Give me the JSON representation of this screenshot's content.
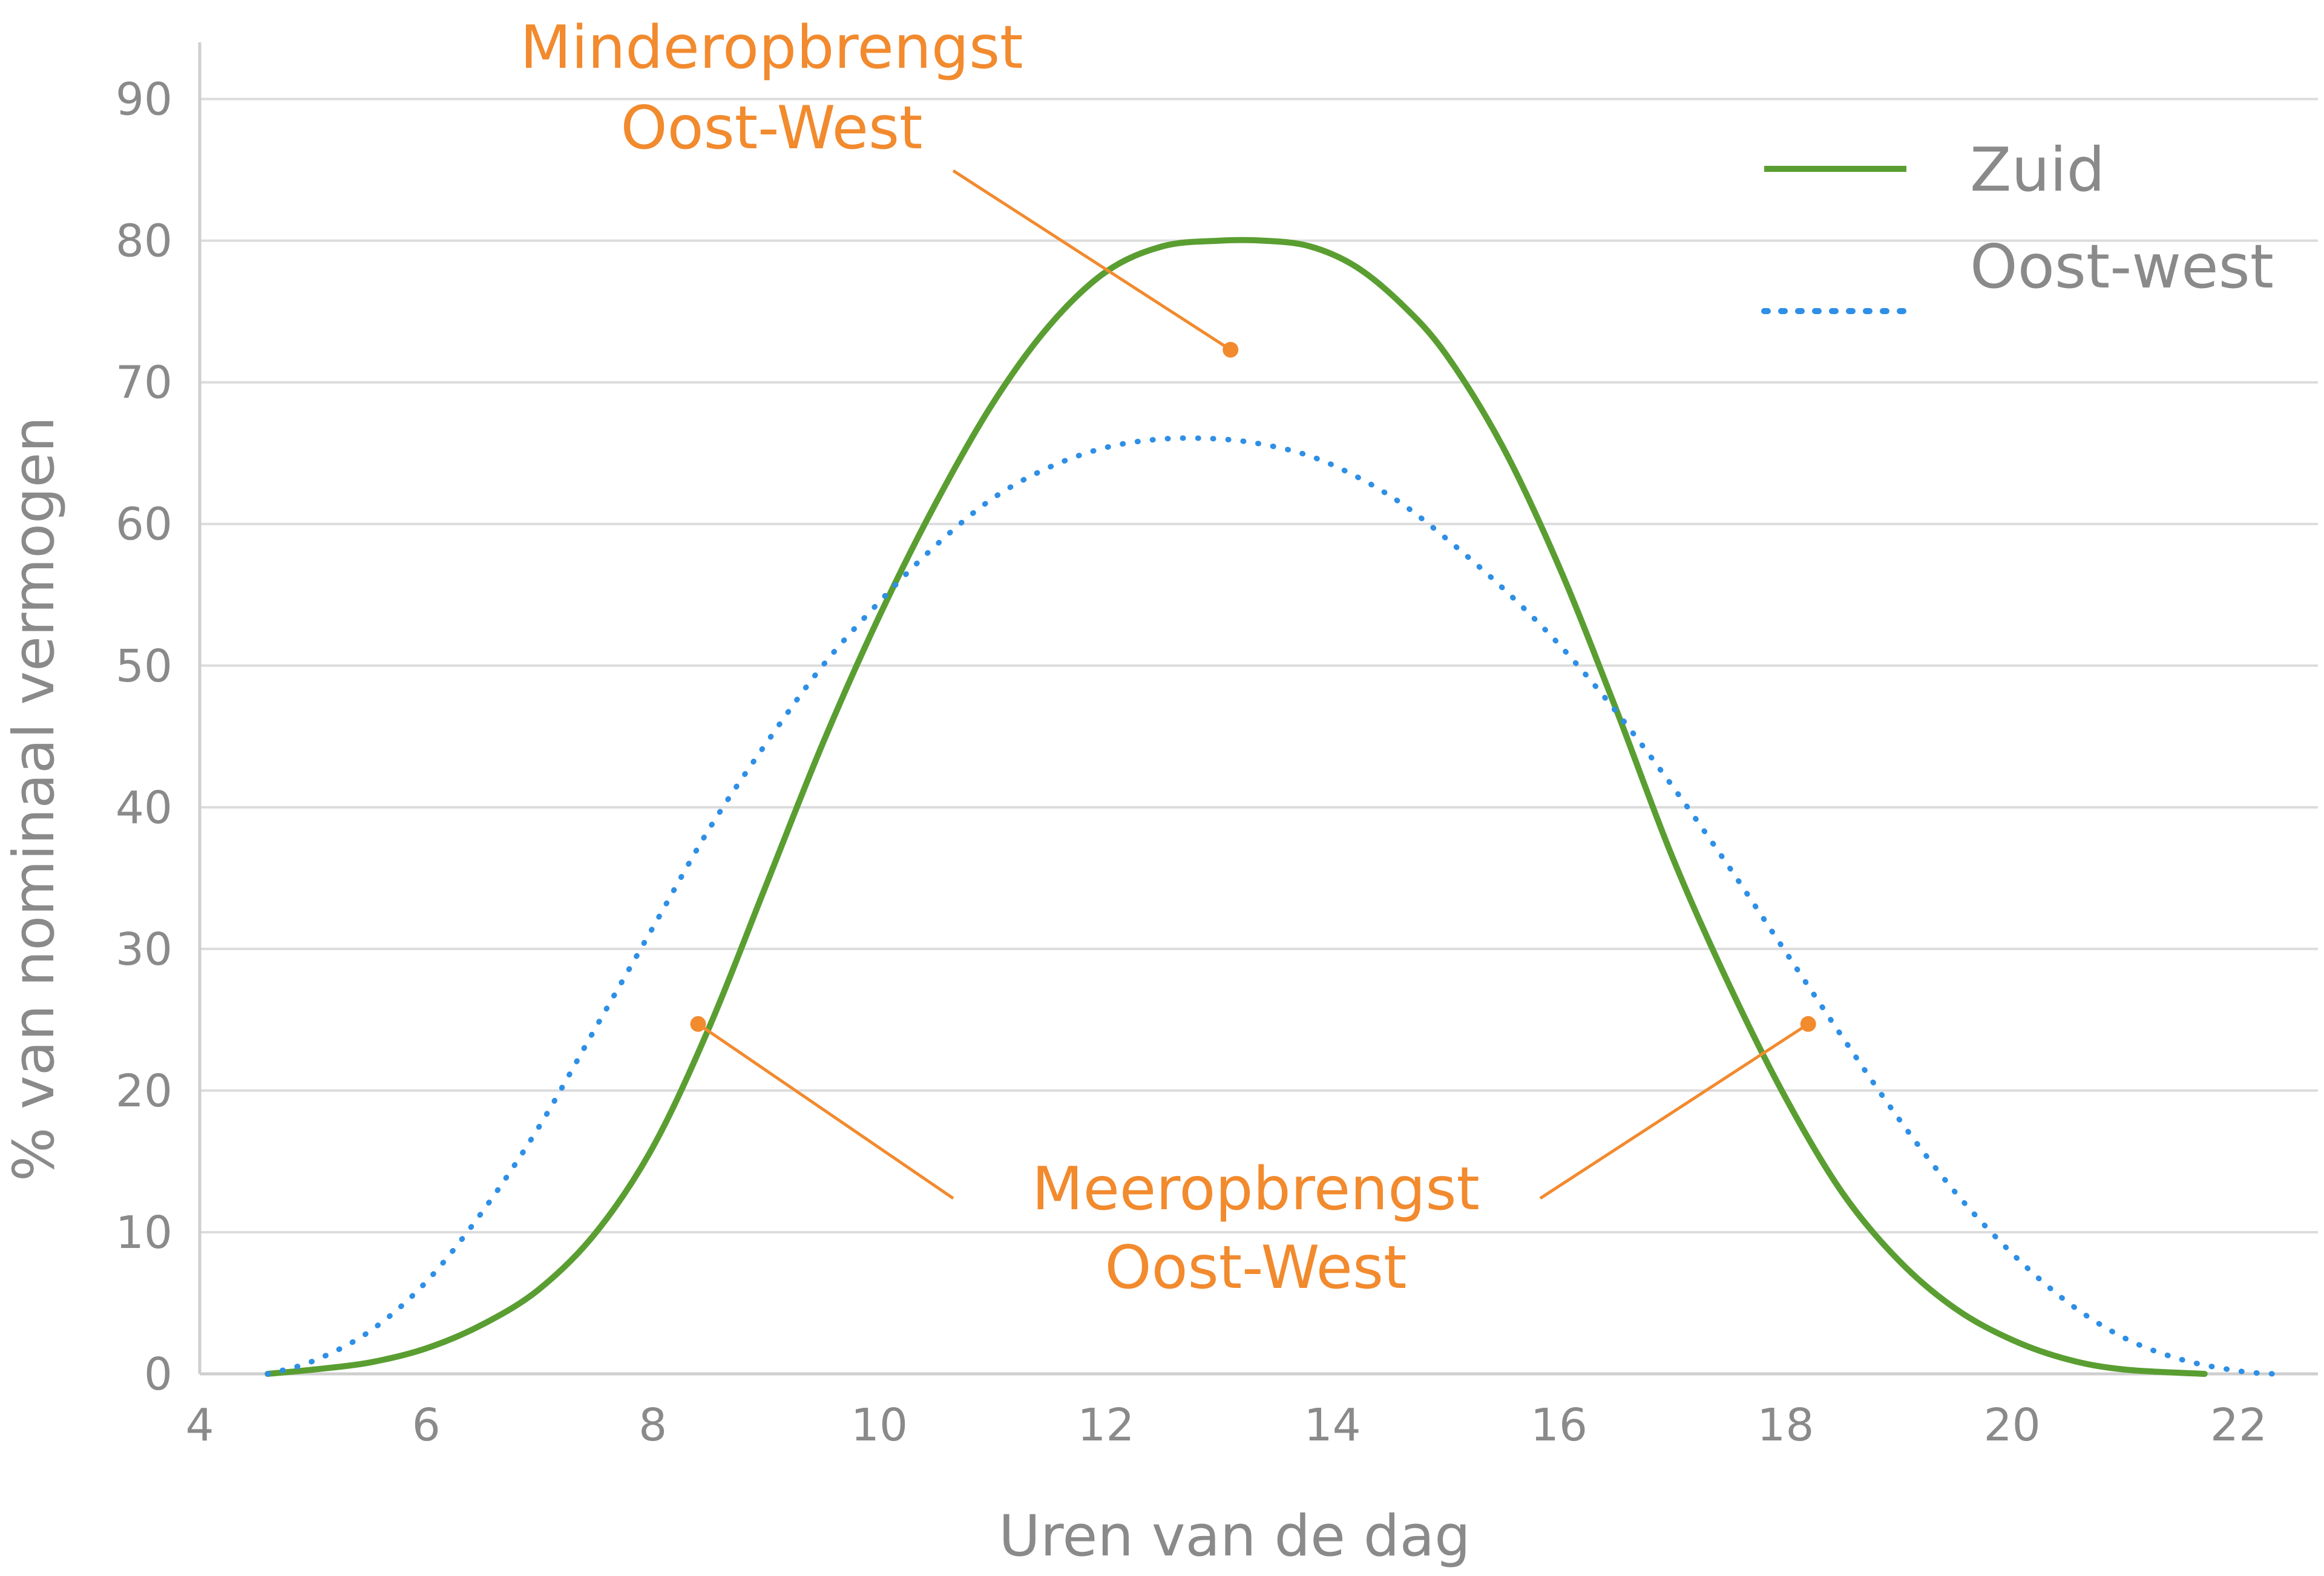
{
  "chart_data": {
    "type": "line",
    "xlabel": "Uren van de dag",
    "ylabel": "% van nominaal vermogen",
    "xlim": [
      4,
      22.7
    ],
    "ylim": [
      0,
      94
    ],
    "xticks": [
      "4",
      "6",
      "8",
      "10",
      "12",
      "14",
      "16",
      "18",
      "20",
      "22"
    ],
    "yticks": [
      "0",
      "10",
      "20",
      "30",
      "40",
      "50",
      "60",
      "70",
      "80",
      "90"
    ],
    "grid": "horizontal",
    "legend_position": "top-right",
    "series": [
      {
        "name": "Zuid",
        "style": "solid",
        "color": "#5a9e32",
        "x": [
          4.6,
          5.0,
          5.5,
          6.0,
          6.5,
          7.0,
          7.5,
          8.0,
          8.5,
          9.0,
          9.5,
          10.0,
          10.5,
          11.0,
          11.5,
          12.0,
          12.5,
          13.0,
          13.4,
          13.8,
          14.2,
          14.6,
          15.0,
          15.5,
          16.0,
          16.5,
          17.0,
          17.5,
          18.0,
          18.5,
          19.0,
          19.5,
          20.0,
          20.5,
          21.0,
          21.7
        ],
        "y": [
          0,
          0.3,
          0.8,
          1.8,
          3.5,
          6.0,
          10.0,
          16.0,
          24.5,
          34.5,
          44.5,
          53.5,
          61.5,
          68.5,
          74.0,
          77.8,
          79.6,
          80.0,
          80.0,
          79.6,
          78.2,
          75.6,
          72.0,
          65.5,
          57.0,
          47.0,
          36.5,
          27.5,
          19.5,
          12.8,
          8.0,
          4.6,
          2.4,
          1.0,
          0.3,
          0.0
        ]
      },
      {
        "name": "Oost-west",
        "style": "dotted",
        "color": "#2e8fe6",
        "x": [
          4.6,
          5.0,
          5.5,
          6.0,
          6.5,
          7.0,
          7.5,
          8.0,
          8.5,
          9.0,
          9.5,
          10.0,
          10.5,
          11.0,
          11.5,
          12.0,
          12.5,
          13.0,
          13.4,
          13.8,
          14.2,
          14.6,
          15.0,
          15.5,
          16.0,
          16.5,
          17.0,
          17.5,
          18.0,
          18.5,
          19.0,
          19.5,
          20.0,
          20.5,
          21.0,
          21.5,
          22.0,
          22.3
        ],
        "y": [
          0,
          0.9,
          3.0,
          6.5,
          11.5,
          17.5,
          24.5,
          31.5,
          38.5,
          44.5,
          50.0,
          54.5,
          58.5,
          61.8,
          64.0,
          65.4,
          66.0,
          66.0,
          65.6,
          64.8,
          63.4,
          61.5,
          59.0,
          55.5,
          51.5,
          46.8,
          41.5,
          35.8,
          29.8,
          23.8,
          18.0,
          12.8,
          8.5,
          5.0,
          2.5,
          1.0,
          0.2,
          0
        ]
      }
    ],
    "annotations": [
      {
        "lines": [
          "Minderopbrengst",
          "Oost-West"
        ],
        "point": [
          13.1,
          72.3
        ]
      },
      {
        "lines": [
          "Meeropbrengst",
          "Oost-West"
        ],
        "points": [
          [
            8.4,
            24.7
          ],
          [
            18.2,
            24.7
          ]
        ]
      }
    ]
  }
}
